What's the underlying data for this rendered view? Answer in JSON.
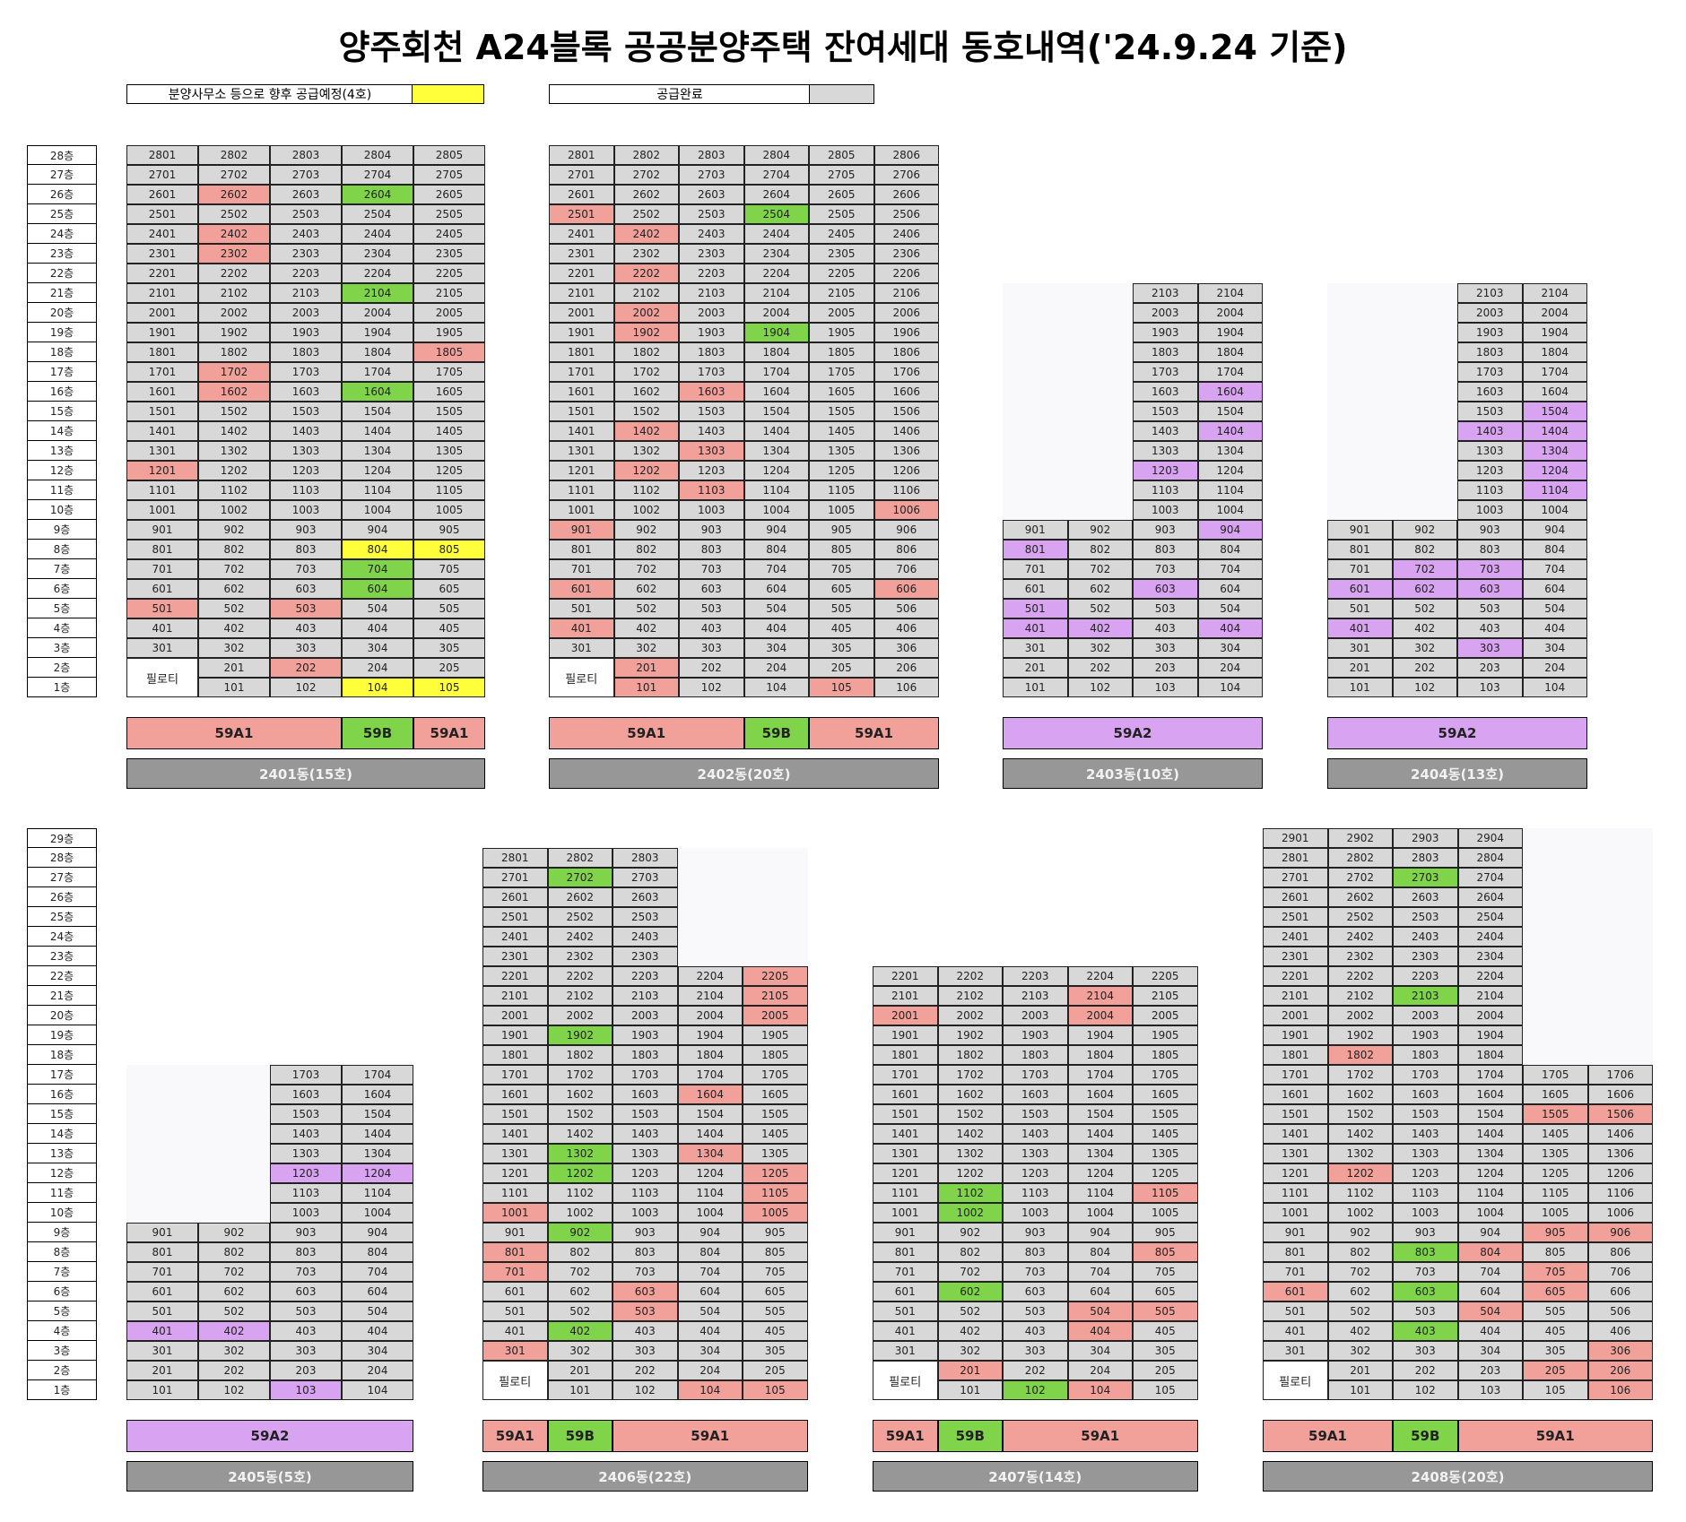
{
  "title": "양주회천 A24블록 공공분양주택 잔여세대 동호내역('24.9.24 기준)",
  "legend": {
    "pending": "분양사무소 등으로 향후 공급예정(4호)",
    "done": "공급완료"
  },
  "pilotis_label": "필로티",
  "colors": {
    "gray": "#d8d8d8",
    "remaining_59A1": "#f2a09a",
    "remaining_59B": "#7fd44a",
    "remaining_59A2": "#d8a3f0",
    "pending": "#ffff3a"
  },
  "top_floor_labels": [
    "28층",
    "27층",
    "26층",
    "25층",
    "24층",
    "23층",
    "22층",
    "21층",
    "20층",
    "19층",
    "18층",
    "17층",
    "16층",
    "15층",
    "14층",
    "13층",
    "12층",
    "11층",
    "10층",
    "9층",
    "8층",
    "7층",
    "6층",
    "5층",
    "4층",
    "3층",
    "2층",
    "1층"
  ],
  "bottom_floor_labels": [
    "29층",
    "28층",
    "27층",
    "26층",
    "25층",
    "24층",
    "23층",
    "22층",
    "21층",
    "20층",
    "19층",
    "18층",
    "17층",
    "16층",
    "15층",
    "14층",
    "13층",
    "12층",
    "11층",
    "10층",
    "9층",
    "8층",
    "7층",
    "6층",
    "5층",
    "4층",
    "3층",
    "2층",
    "1층"
  ],
  "buildings": [
    {
      "id": "2401",
      "label": "2401동(15호)",
      "rows": 28,
      "cols": 5,
      "floors": {
        "28": [
          1,
          5
        ],
        "27": [
          1,
          5
        ],
        "26": [
          1,
          5
        ],
        "25": [
          1,
          5
        ],
        "24": [
          1,
          5
        ],
        "23": [
          1,
          5
        ],
        "22": [
          1,
          5
        ],
        "21": [
          1,
          5
        ],
        "20": [
          1,
          5
        ],
        "19": [
          1,
          5
        ],
        "18": [
          1,
          5
        ],
        "17": [
          1,
          5
        ],
        "16": [
          1,
          5
        ],
        "15": [
          1,
          5
        ],
        "14": [
          1,
          5
        ],
        "13": [
          1,
          5
        ],
        "12": [
          1,
          5
        ],
        "11": [
          1,
          5
        ],
        "10": [
          1,
          5
        ],
        "9": [
          1,
          5
        ],
        "8": [
          1,
          5
        ],
        "7": [
          1,
          5
        ],
        "6": [
          1,
          5
        ],
        "5": [
          1,
          5
        ],
        "4": [
          1,
          5
        ],
        "3": [
          1,
          5
        ],
        "2": [
          1,
          5
        ],
        "1": [
          1,
          5
        ]
      },
      "pilotis": [
        [
          2,
          3
        ],
        [
          1,
          3
        ]
      ],
      "remaining_59A1": [
        "2602",
        "2402",
        "2302",
        "1805",
        "1702",
        "1602",
        "1201",
        "501",
        "503",
        "202"
      ],
      "remaining_59B": [
        "2604",
        "2104",
        "1604",
        "704",
        "604"
      ],
      "remaining_59A2": [],
      "pending": [
        "804",
        "805",
        "104",
        "105"
      ],
      "type_bar": [
        {
          "label": "59A1",
          "cls": "r",
          "span": 3
        },
        {
          "label": "59B",
          "cls": "gr",
          "span": 1
        },
        {
          "label": "59A1",
          "cls": "r",
          "span": 1
        }
      ]
    },
    {
      "id": "2402",
      "label": "2402동(20호)",
      "rows": 28,
      "cols": 6,
      "floors": {
        "28": [
          1,
          6
        ],
        "27": [
          1,
          6
        ],
        "26": [
          1,
          6
        ],
        "25": [
          1,
          6
        ],
        "24": [
          1,
          6
        ],
        "23": [
          1,
          6
        ],
        "22": [
          1,
          6
        ],
        "21": [
          1,
          6
        ],
        "20": [
          1,
          6
        ],
        "19": [
          1,
          6
        ],
        "18": [
          1,
          6
        ],
        "17": [
          1,
          6
        ],
        "16": [
          1,
          6
        ],
        "15": [
          1,
          6
        ],
        "14": [
          1,
          6
        ],
        "13": [
          1,
          6
        ],
        "12": [
          1,
          6
        ],
        "11": [
          1,
          6
        ],
        "10": [
          1,
          6
        ],
        "9": [
          1,
          6
        ],
        "8": [
          1,
          6
        ],
        "7": [
          1,
          6
        ],
        "6": [
          1,
          6
        ],
        "5": [
          1,
          6
        ],
        "4": [
          1,
          6
        ],
        "3": [
          1,
          6
        ],
        "2": [
          1,
          6
        ],
        "1": [
          1,
          6
        ]
      },
      "pilotis": [
        [
          2,
          3
        ],
        [
          1,
          3
        ]
      ],
      "remaining_59A1": [
        "2501",
        "2402",
        "2202",
        "2002",
        "1902",
        "1603",
        "1402",
        "1303",
        "1202",
        "1103",
        "1006",
        "901",
        "601",
        "606",
        "401",
        "201",
        "101",
        "105"
      ],
      "remaining_59B": [
        "2504",
        "1904"
      ],
      "remaining_59A2": [],
      "pending": [],
      "type_bar": [
        {
          "label": "59A1",
          "cls": "r",
          "span": 3
        },
        {
          "label": "59B",
          "cls": "gr",
          "span": 1
        },
        {
          "label": "59A1",
          "cls": "r",
          "span": 2
        }
      ]
    },
    {
      "id": "2403",
      "label": "2403동(10호)",
      "rows": 28,
      "cols": 4,
      "floors": {
        "21": [
          3,
          4
        ],
        "20": [
          3,
          4
        ],
        "19": [
          3,
          4
        ],
        "18": [
          3,
          4
        ],
        "17": [
          3,
          4
        ],
        "16": [
          3,
          4
        ],
        "15": [
          3,
          4
        ],
        "14": [
          3,
          4
        ],
        "13": [
          3,
          4
        ],
        "12": [
          3,
          4
        ],
        "11": [
          3,
          4
        ],
        "10": [
          3,
          4
        ],
        "9": [
          1,
          4
        ],
        "8": [
          1,
          4
        ],
        "7": [
          1,
          4
        ],
        "6": [
          1,
          4
        ],
        "5": [
          1,
          4
        ],
        "4": [
          1,
          4
        ],
        "3": [
          1,
          4
        ],
        "2": [
          1,
          4
        ],
        "1": [
          1,
          4
        ]
      },
      "pilotis": [],
      "remaining_59A1": [],
      "remaining_59B": [],
      "remaining_59A2": [
        "1604",
        "1404",
        "1203",
        "904",
        "801",
        "603",
        "501",
        "401",
        "402",
        "404"
      ],
      "pending": [],
      "type_bar": [
        {
          "label": "59A2",
          "cls": "p",
          "span": 4
        }
      ]
    },
    {
      "id": "2404",
      "label": "2404동(13호)",
      "rows": 28,
      "cols": 4,
      "floors": {
        "21": [
          3,
          4
        ],
        "20": [
          3,
          4
        ],
        "19": [
          3,
          4
        ],
        "18": [
          3,
          4
        ],
        "17": [
          3,
          4
        ],
        "16": [
          3,
          4
        ],
        "15": [
          3,
          4
        ],
        "14": [
          3,
          4
        ],
        "13": [
          3,
          4
        ],
        "12": [
          3,
          4
        ],
        "11": [
          3,
          4
        ],
        "10": [
          3,
          4
        ],
        "9": [
          1,
          4
        ],
        "8": [
          1,
          4
        ],
        "7": [
          1,
          4
        ],
        "6": [
          1,
          4
        ],
        "5": [
          1,
          4
        ],
        "4": [
          1,
          4
        ],
        "3": [
          1,
          4
        ],
        "2": [
          1,
          4
        ],
        "1": [
          1,
          4
        ]
      },
      "pilotis": [],
      "remaining_59A1": [],
      "remaining_59B": [],
      "remaining_59A2": [
        "1504",
        "1403",
        "1404",
        "1304",
        "1204",
        "1104",
        "702",
        "703",
        "601",
        "602",
        "603",
        "401",
        "303"
      ],
      "pending": [],
      "type_bar": [
        {
          "label": "59A2",
          "cls": "p",
          "span": 4
        }
      ]
    },
    {
      "id": "2405",
      "label": "2405동(5호)",
      "rows": 29,
      "cols": 4,
      "floors": {
        "17": [
          3,
          4
        ],
        "16": [
          3,
          4
        ],
        "15": [
          3,
          4
        ],
        "14": [
          3,
          4
        ],
        "13": [
          3,
          4
        ],
        "12": [
          3,
          4
        ],
        "11": [
          3,
          4
        ],
        "10": [
          3,
          4
        ],
        "9": [
          1,
          4
        ],
        "8": [
          1,
          4
        ],
        "7": [
          1,
          4
        ],
        "6": [
          1,
          4
        ],
        "5": [
          1,
          4
        ],
        "4": [
          1,
          4
        ],
        "3": [
          1,
          4
        ],
        "2": [
          1,
          4
        ],
        "1": [
          1,
          4
        ]
      },
      "pilotis": [],
      "remaining_59A1": [],
      "remaining_59B": [],
      "remaining_59A2": [
        "1203",
        "1204",
        "401",
        "402",
        "103"
      ],
      "pending": [],
      "type_bar": [
        {
          "label": "59A2",
          "cls": "p",
          "span": 4
        }
      ]
    },
    {
      "id": "2406",
      "label": "2406동(22호)",
      "rows": 29,
      "cols": 5,
      "floors": {
        "28": [
          1,
          3
        ],
        "27": [
          1,
          3
        ],
        "26": [
          1,
          3
        ],
        "25": [
          1,
          3
        ],
        "24": [
          1,
          3
        ],
        "23": [
          1,
          3
        ],
        "22": [
          1,
          5
        ],
        "21": [
          1,
          5
        ],
        "20": [
          1,
          5
        ],
        "19": [
          1,
          5
        ],
        "18": [
          1,
          5
        ],
        "17": [
          1,
          5
        ],
        "16": [
          1,
          5
        ],
        "15": [
          1,
          5
        ],
        "14": [
          1,
          5
        ],
        "13": [
          1,
          5
        ],
        "12": [
          1,
          5
        ],
        "11": [
          1,
          5
        ],
        "10": [
          1,
          5
        ],
        "9": [
          1,
          5
        ],
        "8": [
          1,
          5
        ],
        "7": [
          1,
          5
        ],
        "6": [
          1,
          5
        ],
        "5": [
          1,
          5
        ],
        "4": [
          1,
          5
        ],
        "3": [
          1,
          5
        ],
        "2": [
          1,
          5
        ],
        "1": [
          1,
          5
        ]
      },
      "pilotis": [
        [
          2,
          3
        ],
        [
          1,
          3
        ]
      ],
      "remaining_59A1": [
        "2205",
        "2105",
        "2005",
        "1604",
        "1304",
        "1205",
        "1105",
        "1001",
        "1005",
        "801",
        "701",
        "603",
        "503",
        "301",
        "104",
        "105"
      ],
      "remaining_59B": [
        "2702",
        "1902",
        "1302",
        "1202",
        "902",
        "402"
      ],
      "remaining_59A2": [],
      "pending": [],
      "type_bar": [
        {
          "label": "59A1",
          "cls": "r",
          "span": 1
        },
        {
          "label": "59B",
          "cls": "gr",
          "span": 1
        },
        {
          "label": "59A1",
          "cls": "r",
          "span": 3
        }
      ]
    },
    {
      "id": "2407",
      "label": "2407동(14호)",
      "rows": 29,
      "cols": 5,
      "floors": {
        "22": [
          1,
          5
        ],
        "21": [
          1,
          5
        ],
        "20": [
          1,
          5
        ],
        "19": [
          1,
          5
        ],
        "18": [
          1,
          5
        ],
        "17": [
          1,
          5
        ],
        "16": [
          1,
          5
        ],
        "15": [
          1,
          5
        ],
        "14": [
          1,
          5
        ],
        "13": [
          1,
          5
        ],
        "12": [
          1,
          5
        ],
        "11": [
          1,
          5
        ],
        "10": [
          1,
          5
        ],
        "9": [
          1,
          5
        ],
        "8": [
          1,
          5
        ],
        "7": [
          1,
          5
        ],
        "6": [
          1,
          5
        ],
        "5": [
          1,
          5
        ],
        "4": [
          1,
          5
        ],
        "3": [
          1,
          5
        ],
        "2": [
          1,
          5
        ],
        "1": [
          1,
          5
        ]
      },
      "pilotis": [
        [
          2,
          3
        ],
        [
          1,
          3
        ]
      ],
      "remaining_59A1": [
        "2104",
        "2001",
        "2004",
        "1105",
        "805",
        "504",
        "505",
        "404",
        "201",
        "104"
      ],
      "remaining_59B": [
        "1102",
        "1002",
        "602",
        "102"
      ],
      "remaining_59A2": [],
      "pending": [],
      "type_bar": [
        {
          "label": "59A1",
          "cls": "r",
          "span": 1
        },
        {
          "label": "59B",
          "cls": "gr",
          "span": 1
        },
        {
          "label": "59A1",
          "cls": "r",
          "span": 3
        }
      ]
    },
    {
      "id": "2408",
      "label": "2408동(20호)",
      "rows": 29,
      "cols": 6,
      "floors": {
        "29": [
          1,
          4
        ],
        "28": [
          1,
          4
        ],
        "27": [
          1,
          4
        ],
        "26": [
          1,
          4
        ],
        "25": [
          1,
          4
        ],
        "24": [
          1,
          4
        ],
        "23": [
          1,
          4
        ],
        "22": [
          1,
          4
        ],
        "21": [
          1,
          4
        ],
        "20": [
          1,
          4
        ],
        "19": [
          1,
          4
        ],
        "18": [
          1,
          4
        ],
        "17": [
          1,
          6
        ],
        "16": [
          1,
          6
        ],
        "15": [
          1,
          6
        ],
        "14": [
          1,
          6
        ],
        "13": [
          1,
          6
        ],
        "12": [
          1,
          6
        ],
        "11": [
          1,
          6
        ],
        "10": [
          1,
          6
        ],
        "9": [
          1,
          6
        ],
        "8": [
          1,
          6
        ],
        "7": [
          1,
          6
        ],
        "6": [
          1,
          6
        ],
        "5": [
          1,
          6
        ],
        "4": [
          1,
          6
        ],
        "3": [
          1,
          6
        ],
        "2": [
          1,
          6
        ],
        "1": [
          1,
          6
        ]
      },
      "pilotis": [
        [
          2,
          4
        ],
        [
          1,
          4
        ]
      ],
      "remaining_59A1": [
        "1802",
        "1505",
        "1506",
        "1202",
        "905",
        "906",
        "804",
        "705",
        "601",
        "605",
        "504",
        "306",
        "205",
        "206",
        "106"
      ],
      "remaining_59B": [
        "2703",
        "2103",
        "803",
        "603",
        "403"
      ],
      "remaining_59A2": [],
      "pending": [],
      "type_bar": [
        {
          "label": "59A1",
          "cls": "r",
          "span": 2
        },
        {
          "label": "59B",
          "cls": "gr",
          "span": 1
        },
        {
          "label": "59A1",
          "cls": "r",
          "span": 3
        }
      ]
    }
  ]
}
